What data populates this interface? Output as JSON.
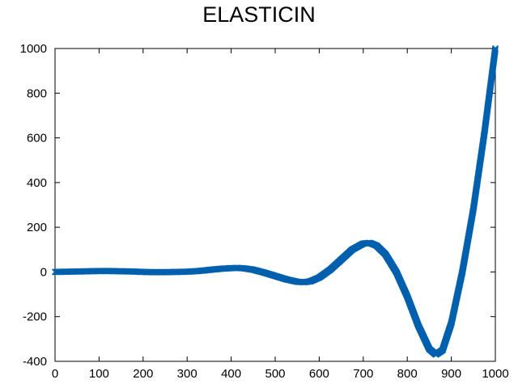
{
  "chart_data": {
    "type": "scatter",
    "title": "ELASTICIN",
    "xlabel": "",
    "ylabel": "",
    "xlim": [
      0,
      1000
    ],
    "ylim": [
      -400,
      1000
    ],
    "x_ticks": [
      0,
      100,
      200,
      300,
      400,
      500,
      600,
      700,
      800,
      900,
      1000
    ],
    "y_ticks": [
      -400,
      -200,
      0,
      200,
      400,
      600,
      800,
      1000
    ],
    "grid": false,
    "legend": "none",
    "marker": "x",
    "series_color": "#0060ad",
    "series": [
      {
        "points": [
          [
            0,
            0
          ],
          [
            25,
            1
          ],
          [
            50,
            2
          ],
          [
            75,
            3
          ],
          [
            100,
            4
          ],
          [
            125,
            4
          ],
          [
            150,
            3
          ],
          [
            175,
            2
          ],
          [
            200,
            0
          ],
          [
            225,
            -1
          ],
          [
            250,
            -1
          ],
          [
            275,
            0
          ],
          [
            300,
            1
          ],
          [
            325,
            4
          ],
          [
            350,
            9
          ],
          [
            375,
            14
          ],
          [
            400,
            17
          ],
          [
            415,
            18
          ],
          [
            430,
            16
          ],
          [
            450,
            10
          ],
          [
            475,
            -3
          ],
          [
            500,
            -18
          ],
          [
            525,
            -33
          ],
          [
            550,
            -44
          ],
          [
            565,
            -46
          ],
          [
            580,
            -42
          ],
          [
            600,
            -25
          ],
          [
            625,
            10
          ],
          [
            650,
            55
          ],
          [
            675,
            100
          ],
          [
            700,
            127
          ],
          [
            715,
            130
          ],
          [
            730,
            118
          ],
          [
            750,
            80
          ],
          [
            775,
            0
          ],
          [
            800,
            -110
          ],
          [
            825,
            -240
          ],
          [
            850,
            -345
          ],
          [
            865,
            -370
          ],
          [
            880,
            -350
          ],
          [
            900,
            -230
          ],
          [
            925,
            0
          ],
          [
            950,
            280
          ],
          [
            975,
            620
          ],
          [
            1000,
            1000
          ]
        ]
      }
    ]
  }
}
